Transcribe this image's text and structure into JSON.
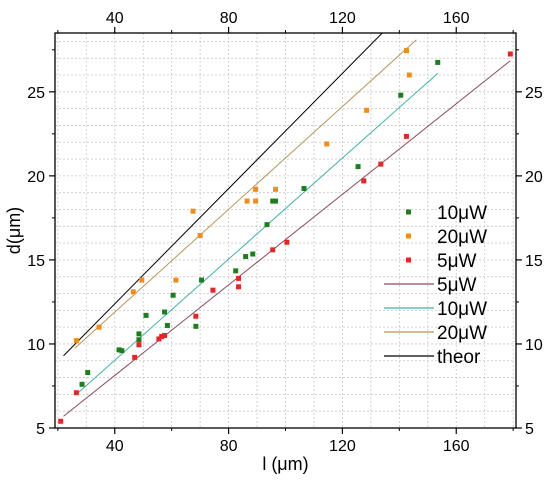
{
  "chart_data": {
    "type": "scatter",
    "xlabel": "l (μm)",
    "ylabel": "d(μm)",
    "xlim": [
      19,
      181
    ],
    "ylim": [
      5,
      28.5
    ],
    "x_ticks": [
      40,
      80,
      120,
      160
    ],
    "y_ticks": [
      5,
      10,
      15,
      20,
      25
    ],
    "mirror_axes": [
      "top",
      "right"
    ],
    "grid": true,
    "legend_position": "right",
    "series": [
      {
        "name": "10μW",
        "kind": "points",
        "color": "#1e7d1e",
        "points": [
          [
            28.5,
            7.6
          ],
          [
            30.5,
            8.3
          ],
          [
            41.5,
            9.65
          ],
          [
            42.5,
            9.6
          ],
          [
            48.5,
            10.6
          ],
          [
            48.5,
            10.25
          ],
          [
            51,
            11.7
          ],
          [
            57.5,
            11.9
          ],
          [
            58.5,
            11.1
          ],
          [
            60.5,
            12.9
          ],
          [
            68.5,
            11.05
          ],
          [
            70.5,
            13.8
          ],
          [
            82.5,
            14.35
          ],
          [
            86,
            15.2
          ],
          [
            88.5,
            15.35
          ],
          [
            93.5,
            17.1
          ],
          [
            95.5,
            18.5
          ],
          [
            96.5,
            18.5
          ],
          [
            106.5,
            19.25
          ],
          [
            125.5,
            20.55
          ],
          [
            140.5,
            24.8
          ],
          [
            153.5,
            26.75
          ]
        ]
      },
      {
        "name": "20μW",
        "kind": "points",
        "color": "#f08c1e",
        "points": [
          [
            26.5,
            10.2
          ],
          [
            34.5,
            11.0
          ],
          [
            46.5,
            13.1
          ],
          [
            49.5,
            13.8
          ],
          [
            61.5,
            13.8
          ],
          [
            67.5,
            17.9
          ],
          [
            70,
            16.45
          ],
          [
            86.5,
            18.5
          ],
          [
            89.5,
            19.2
          ],
          [
            89.5,
            18.5
          ],
          [
            96.5,
            19.2
          ],
          [
            114.5,
            21.9
          ],
          [
            128.5,
            23.9
          ],
          [
            142.5,
            27.45
          ],
          [
            143.5,
            26.0
          ]
        ]
      },
      {
        "name": "5μW",
        "kind": "points",
        "color": "#e02828",
        "points": [
          [
            21,
            5.4
          ],
          [
            26.5,
            7.1
          ],
          [
            47,
            9.2
          ],
          [
            48.5,
            9.95
          ],
          [
            55.5,
            10.3
          ],
          [
            56.5,
            10.45
          ],
          [
            57.5,
            10.5
          ],
          [
            68.5,
            11.65
          ],
          [
            74.5,
            13.2
          ],
          [
            83.5,
            13.4
          ],
          [
            83.5,
            13.9
          ],
          [
            95.5,
            15.6
          ],
          [
            100.5,
            16.05
          ],
          [
            127.5,
            19.7
          ],
          [
            133.5,
            20.7
          ],
          [
            142.5,
            22.35
          ],
          [
            179,
            27.25
          ]
        ]
      },
      {
        "name": "5μW",
        "kind": "line",
        "color": "#8a4a5a",
        "x": [
          22,
          179
        ],
        "y": [
          5.7,
          26.85
        ]
      },
      {
        "name": "10μW",
        "kind": "line",
        "color": "#40b0a8",
        "x": [
          26.5,
          153.5
        ],
        "y": [
          7.0,
          26.1
        ]
      },
      {
        "name": "20μW",
        "kind": "line",
        "color": "#b8955a",
        "x": [
          26,
          146
        ],
        "y": [
          9.75,
          28.1
        ]
      },
      {
        "name": "theor",
        "kind": "line",
        "color": "#000000",
        "x": [
          22,
          134
        ],
        "y": [
          9.3,
          28.5
        ]
      }
    ]
  }
}
